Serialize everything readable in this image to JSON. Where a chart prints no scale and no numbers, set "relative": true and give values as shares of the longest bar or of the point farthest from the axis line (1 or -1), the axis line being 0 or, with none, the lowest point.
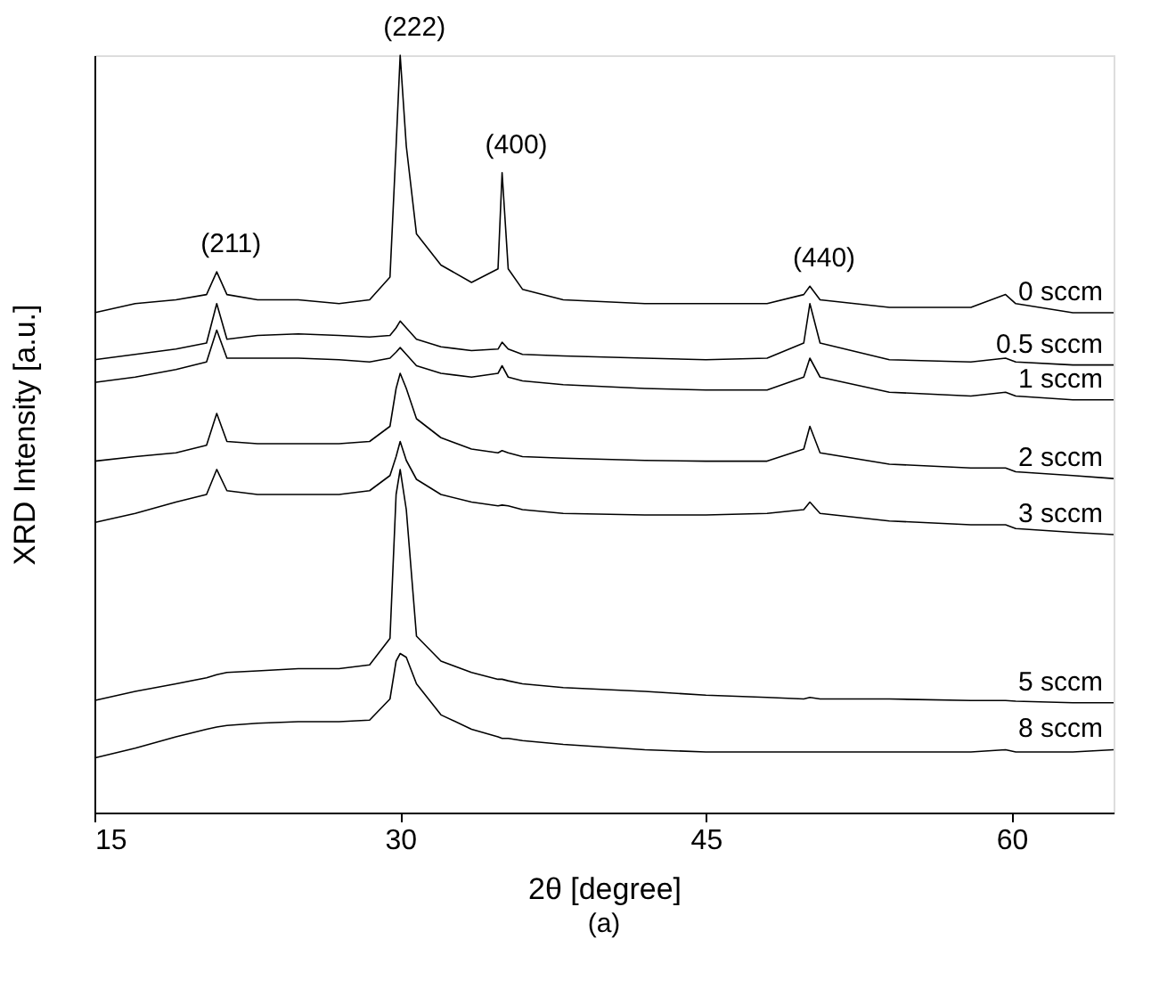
{
  "chart_data": {
    "type": "line",
    "relative": true,
    "xlabel": "2θ [degree]",
    "ylabel": "XRD Intensity [a.u.]",
    "xlim": [
      15,
      65
    ],
    "xticks": [
      15,
      30,
      45,
      60
    ],
    "tick_labels": "x",
    "marker": "none",
    "line_style": "solid",
    "x": [
      15,
      17,
      19,
      20.5,
      21,
      21.5,
      23,
      25,
      27,
      28.5,
      29.5,
      29.8,
      30,
      30.3,
      30.8,
      32,
      33.5,
      34.8,
      35,
      35.3,
      36,
      38,
      42,
      45,
      48,
      49.8,
      50.1,
      50.6,
      54,
      58,
      59.7,
      60.2,
      63,
      65
    ],
    "series": [
      {
        "name": "0 sccm",
        "color": "#000000",
        "values": [
          0.66,
          0.672,
          0.677,
          0.684,
          0.714,
          0.684,
          0.677,
          0.677,
          0.672,
          0.677,
          0.707,
          0.88,
          1.0,
          0.88,
          0.764,
          0.723,
          0.7,
          0.718,
          0.845,
          0.718,
          0.691,
          0.677,
          0.672,
          0.672,
          0.672,
          0.684,
          0.695,
          0.677,
          0.667,
          0.667,
          0.684,
          0.672,
          0.66,
          0.66
        ]
      },
      {
        "name": "0.5 sccm",
        "color": "#000000",
        "values": [
          0.598,
          0.605,
          0.612,
          0.62,
          0.672,
          0.625,
          0.63,
          0.632,
          0.63,
          0.628,
          0.63,
          0.64,
          0.649,
          0.64,
          0.625,
          0.615,
          0.61,
          0.612,
          0.621,
          0.612,
          0.605,
          0.603,
          0.6,
          0.598,
          0.6,
          0.62,
          0.672,
          0.62,
          0.598,
          0.595,
          0.6,
          0.595,
          0.591,
          0.591
        ]
      },
      {
        "name": "1 sccm",
        "color": "#000000",
        "values": [
          0.568,
          0.575,
          0.585,
          0.595,
          0.637,
          0.6,
          0.6,
          0.6,
          0.598,
          0.595,
          0.6,
          0.608,
          0.614,
          0.605,
          0.59,
          0.58,
          0.575,
          0.58,
          0.59,
          0.575,
          0.57,
          0.565,
          0.56,
          0.558,
          0.558,
          0.575,
          0.6,
          0.575,
          0.555,
          0.55,
          0.555,
          0.55,
          0.545,
          0.545
        ]
      },
      {
        "name": "2 sccm",
        "color": "#000000",
        "values": [
          0.464,
          0.47,
          0.475,
          0.485,
          0.527,
          0.49,
          0.487,
          0.487,
          0.487,
          0.49,
          0.51,
          0.56,
          0.58,
          0.56,
          0.52,
          0.495,
          0.48,
          0.475,
          0.478,
          0.475,
          0.47,
          0.468,
          0.465,
          0.464,
          0.464,
          0.48,
          0.51,
          0.475,
          0.46,
          0.455,
          0.455,
          0.45,
          0.445,
          0.441
        ]
      },
      {
        "name": "3 sccm",
        "color": "#000000",
        "values": [
          0.383,
          0.395,
          0.41,
          0.42,
          0.453,
          0.425,
          0.42,
          0.42,
          0.42,
          0.425,
          0.445,
          0.47,
          0.49,
          0.465,
          0.44,
          0.42,
          0.41,
          0.405,
          0.406,
          0.405,
          0.4,
          0.395,
          0.393,
          0.393,
          0.395,
          0.4,
          0.41,
          0.395,
          0.385,
          0.38,
          0.38,
          0.375,
          0.37,
          0.367
        ]
      },
      {
        "name": "5 sccm",
        "color": "#000000",
        "values": [
          0.148,
          0.16,
          0.17,
          0.178,
          0.182,
          0.185,
          0.187,
          0.19,
          0.19,
          0.195,
          0.23,
          0.42,
          0.453,
          0.4,
          0.233,
          0.2,
          0.185,
          0.176,
          0.176,
          0.174,
          0.17,
          0.165,
          0.16,
          0.155,
          0.152,
          0.15,
          0.152,
          0.15,
          0.15,
          0.148,
          0.148,
          0.147,
          0.145,
          0.145
        ]
      },
      {
        "name": "8 sccm",
        "color": "#000000",
        "values": [
          0.072,
          0.085,
          0.1,
          0.11,
          0.113,
          0.115,
          0.118,
          0.12,
          0.12,
          0.122,
          0.15,
          0.2,
          0.21,
          0.205,
          0.17,
          0.129,
          0.11,
          0.1,
          0.098,
          0.098,
          0.095,
          0.09,
          0.083,
          0.08,
          0.08,
          0.08,
          0.08,
          0.08,
          0.08,
          0.08,
          0.083,
          0.08,
          0.08,
          0.083
        ]
      }
    ],
    "annotations": [
      {
        "text": "(211)",
        "x": 21,
        "y": 0.714
      },
      {
        "text": "(222)",
        "x": 30,
        "y": 1.0
      },
      {
        "text": "(400)",
        "x": 35,
        "y": 0.845
      },
      {
        "text": "(440)",
        "x": 50.1,
        "y": 0.695
      },
      "(a)"
    ]
  }
}
